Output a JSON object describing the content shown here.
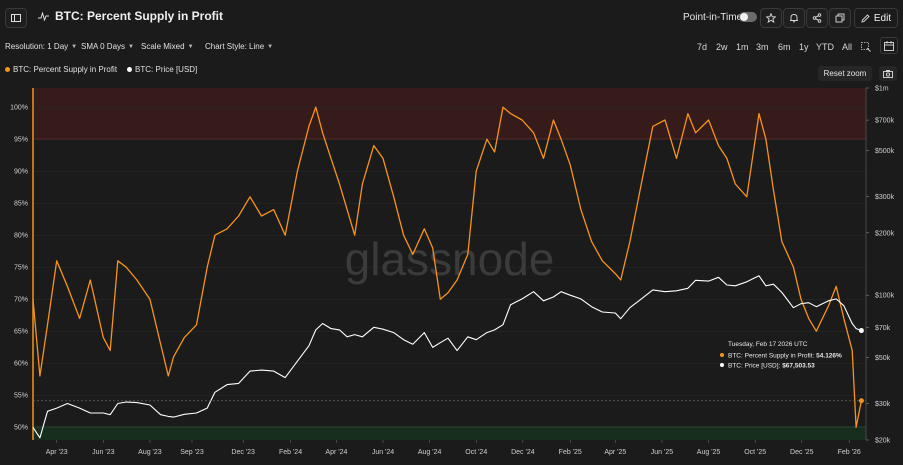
{
  "header": {
    "title": "BTC: Percent Supply in Profit",
    "point_in_time_label": "Point-in-Time",
    "edit_label": "Edit"
  },
  "toolbar": {
    "resolution": "Resolution: 1 Day",
    "sma": "SMA 0 Days",
    "scale": "Scale Mixed",
    "chart_style": "Chart Style: Line",
    "ranges": [
      "7d",
      "2w",
      "1m",
      "3m",
      "6m",
      "1y",
      "YTD",
      "All"
    ]
  },
  "legend": {
    "series1": "BTC: Percent Supply in Profit",
    "series2": "BTC: Price [USD]"
  },
  "reset_zoom": "Reset zoom",
  "watermark": "glassnode",
  "colors": {
    "supply": "#f7931a",
    "price": "#ffffff",
    "top_band": "#3a1c1c",
    "bottom_band": "#17301f",
    "accent": "#f7931a"
  },
  "tooltip": {
    "date": "Tuesday, Feb 17 2026 UTC",
    "line1_label": "BTC: Percent Supply in Profit:",
    "line1_value": "54.126%",
    "line2_label": "BTC: Price [USD]:",
    "line2_value": "$67,503.53"
  },
  "chart_data": {
    "type": "line",
    "title": "BTC: Percent Supply in Profit",
    "x_ticks": [
      "Apr '23",
      "Jun '23",
      "Aug '23",
      "Sep '23",
      "Dec '23",
      "Feb '24",
      "Apr '24",
      "Jun '24",
      "Aug '24",
      "Oct '24",
      "Dec '24",
      "Feb '25",
      "Apr '25",
      "Jun '25",
      "Aug '25",
      "Oct '25",
      "Dec '25",
      "Feb '26"
    ],
    "y_left": {
      "ticks": [
        "100%",
        "95%",
        "90%",
        "85%",
        "80%",
        "75%",
        "70%",
        "65%",
        "60%",
        "55%",
        "50%"
      ],
      "range": [
        48,
        103
      ]
    },
    "y_right": {
      "ticks": [
        "$1m",
        "$700k",
        "$500k",
        "$300k",
        "$200k",
        "$100k",
        "$70k",
        "$50k",
        "$30k",
        "$20k"
      ],
      "scale": "log",
      "range": [
        20000,
        1000000
      ]
    },
    "bands": {
      "upper": [
        95,
        103
      ],
      "lower": [
        48,
        50
      ]
    },
    "series": [
      {
        "name": "BTC: Percent Supply in Profit",
        "axis": "left",
        "x": [
          "2023-03-01",
          "2023-03-10",
          "2023-03-20",
          "2023-04-01",
          "2023-04-15",
          "2023-05-01",
          "2023-05-15",
          "2023-06-01",
          "2023-06-10",
          "2023-06-20",
          "2023-07-01",
          "2023-07-15",
          "2023-08-01",
          "2023-08-15",
          "2023-08-25",
          "2023-09-01",
          "2023-09-15",
          "2023-10-01",
          "2023-10-15",
          "2023-10-25",
          "2023-11-10",
          "2023-11-25",
          "2023-12-10",
          "2023-12-25",
          "2024-01-10",
          "2024-01-25",
          "2024-02-10",
          "2024-02-25",
          "2024-03-05",
          "2024-03-14",
          "2024-03-25",
          "2024-04-05",
          "2024-04-15",
          "2024-04-25",
          "2024-05-05",
          "2024-05-20",
          "2024-06-01",
          "2024-06-15",
          "2024-06-28",
          "2024-07-10",
          "2024-07-25",
          "2024-08-05",
          "2024-08-15",
          "2024-08-25",
          "2024-09-06",
          "2024-09-20",
          "2024-10-01",
          "2024-10-15",
          "2024-10-25",
          "2024-11-05",
          "2024-11-15",
          "2024-11-30",
          "2024-12-15",
          "2024-12-28",
          "2025-01-10",
          "2025-01-20",
          "2025-02-01",
          "2025-02-15",
          "2025-03-01",
          "2025-03-15",
          "2025-04-01",
          "2025-04-08",
          "2025-04-20",
          "2025-05-05",
          "2025-05-20",
          "2025-06-05",
          "2025-06-20",
          "2025-07-05",
          "2025-07-15",
          "2025-08-01",
          "2025-08-14",
          "2025-08-25",
          "2025-09-05",
          "2025-09-20",
          "2025-10-06",
          "2025-10-15",
          "2025-10-25",
          "2025-11-05",
          "2025-11-20",
          "2025-11-30",
          "2025-12-10",
          "2025-12-20",
          "2026-01-05",
          "2026-01-15",
          "2026-01-25",
          "2026-02-05",
          "2026-02-10",
          "2026-02-17"
        ],
        "y": [
          70,
          58,
          66,
          76,
          72,
          67,
          73,
          64,
          62,
          76,
          75,
          73,
          70,
          63,
          58,
          61,
          64,
          66,
          75,
          80,
          81,
          83,
          86,
          83,
          84,
          80,
          90,
          97,
          100,
          96,
          92,
          88,
          84,
          80,
          88,
          94,
          92,
          86,
          80,
          77,
          81,
          78,
          70,
          71,
          73,
          77,
          90,
          95,
          93,
          100,
          99,
          98,
          96,
          92,
          98,
          95,
          91,
          84,
          79,
          76,
          74,
          73,
          79,
          88,
          97,
          98,
          92,
          99,
          96,
          98,
          94,
          92,
          88,
          86,
          99,
          95,
          87,
          79,
          75,
          70,
          67,
          65,
          69,
          72,
          67,
          62,
          50,
          54.126
        ]
      },
      {
        "name": "BTC: Price [USD]",
        "axis": "right",
        "x": [
          "2023-03-01",
          "2023-03-10",
          "2023-03-20",
          "2023-04-01",
          "2023-04-15",
          "2023-05-01",
          "2023-05-15",
          "2023-06-01",
          "2023-06-10",
          "2023-06-20",
          "2023-07-01",
          "2023-07-15",
          "2023-08-01",
          "2023-08-15",
          "2023-08-25",
          "2023-09-01",
          "2023-09-15",
          "2023-10-01",
          "2023-10-15",
          "2023-10-25",
          "2023-11-10",
          "2023-11-25",
          "2023-12-10",
          "2023-12-25",
          "2024-01-10",
          "2024-01-25",
          "2024-02-10",
          "2024-02-25",
          "2024-03-05",
          "2024-03-14",
          "2024-03-25",
          "2024-04-05",
          "2024-04-15",
          "2024-04-25",
          "2024-05-05",
          "2024-05-20",
          "2024-06-01",
          "2024-06-15",
          "2024-06-28",
          "2024-07-10",
          "2024-07-25",
          "2024-08-05",
          "2024-08-15",
          "2024-08-25",
          "2024-09-06",
          "2024-09-20",
          "2024-10-01",
          "2024-10-15",
          "2024-10-25",
          "2024-11-05",
          "2024-11-15",
          "2024-11-30",
          "2024-12-15",
          "2024-12-28",
          "2025-01-10",
          "2025-01-20",
          "2025-02-01",
          "2025-02-15",
          "2025-03-01",
          "2025-03-15",
          "2025-04-01",
          "2025-04-08",
          "2025-04-20",
          "2025-05-05",
          "2025-05-20",
          "2025-06-05",
          "2025-06-20",
          "2025-07-05",
          "2025-07-15",
          "2025-08-01",
          "2025-08-14",
          "2025-08-25",
          "2025-09-05",
          "2025-09-20",
          "2025-10-06",
          "2025-10-15",
          "2025-10-25",
          "2025-11-05",
          "2025-11-20",
          "2025-11-30",
          "2025-12-10",
          "2025-12-20",
          "2026-01-05",
          "2026-01-15",
          "2026-01-25",
          "2026-02-05",
          "2026-02-10",
          "2026-02-17"
        ],
        "y": [
          23000,
          20500,
          27500,
          28500,
          30000,
          28500,
          27000,
          27000,
          26500,
          30000,
          30500,
          30300,
          29500,
          26500,
          26000,
          25800,
          26600,
          27000,
          28500,
          34000,
          37000,
          37500,
          43000,
          43500,
          43000,
          40000,
          48000,
          57000,
          68000,
          73000,
          69000,
          68000,
          63000,
          64500,
          63000,
          70000,
          68500,
          66000,
          61000,
          58000,
          66000,
          56000,
          59000,
          62000,
          54000,
          63000,
          61000,
          66000,
          68000,
          72000,
          90000,
          96000,
          104000,
          94000,
          98000,
          104000,
          100000,
          96000,
          88000,
          83000,
          82000,
          77000,
          87000,
          96000,
          106000,
          104000,
          105000,
          108000,
          118000,
          117000,
          122000,
          112000,
          111000,
          116000,
          124000,
          111000,
          113000,
          103000,
          87000,
          91000,
          92000,
          88000,
          94000,
          96000,
          89000,
          73000,
          69000,
          67503.53
        ]
      }
    ]
  }
}
